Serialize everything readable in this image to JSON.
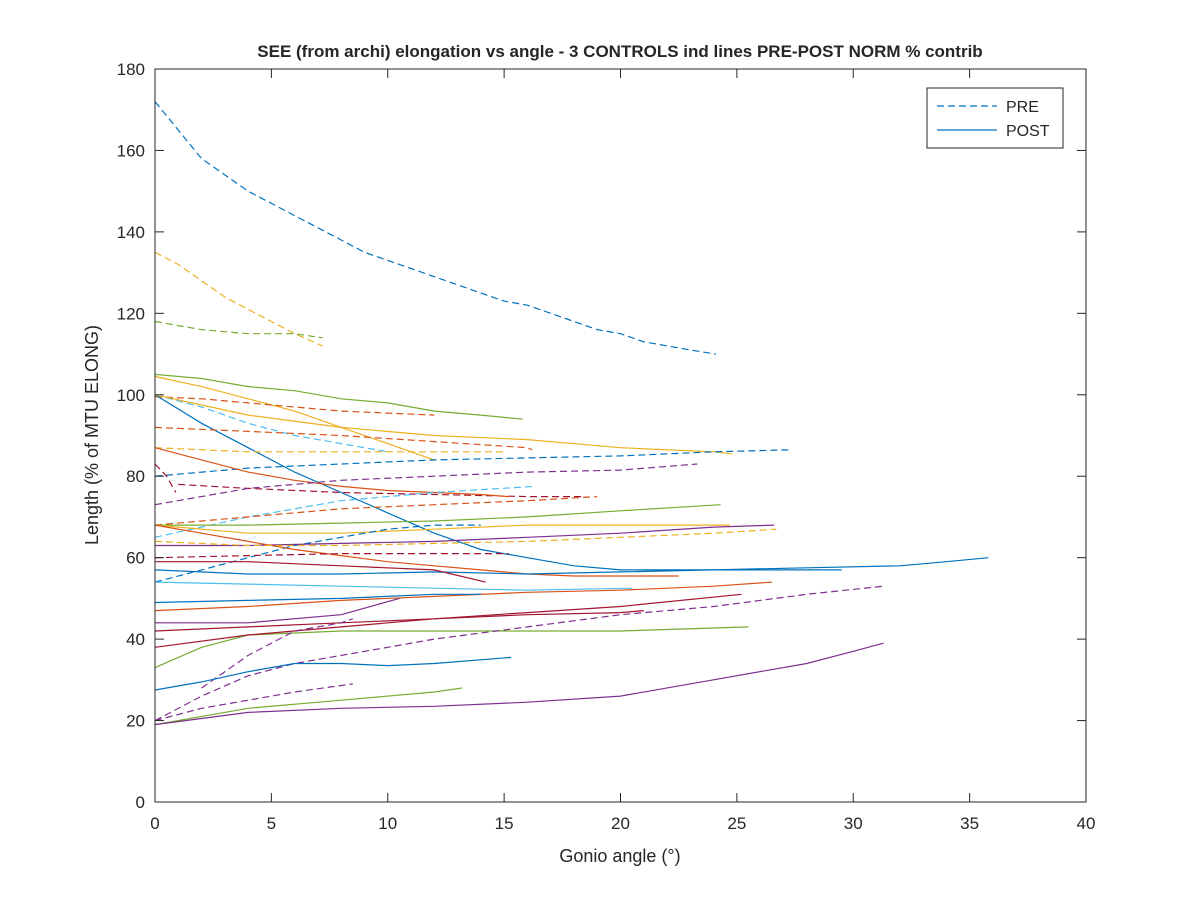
{
  "chart_data": {
    "type": "line",
    "title": "SEE (from archi) elongation vs angle - 3 CONTROLS ind lines PRE-POST NORM % contrib",
    "xlabel": "Gonio angle (°)",
    "ylabel": "Length (% of MTU ELONG)",
    "xlim": [
      0,
      40
    ],
    "ylim": [
      0,
      180
    ],
    "xticks": [
      "0",
      "5",
      "10",
      "15",
      "20",
      "25",
      "30",
      "35",
      "40"
    ],
    "yticks": [
      "0",
      "20",
      "40",
      "60",
      "80",
      "100",
      "120",
      "140",
      "160",
      "180"
    ],
    "grid": false,
    "legend_position": "top-right",
    "legend": [
      {
        "label": "PRE",
        "style": "dashed",
        "color": "#0072BD"
      },
      {
        "label": "POST",
        "style": "solid",
        "color": "#0072BD"
      }
    ],
    "series": [
      {
        "color": "#0072BD",
        "style": "dashed",
        "x": [
          0,
          1,
          2,
          3,
          4,
          5,
          6,
          7,
          8,
          9,
          10,
          11,
          12,
          13,
          14,
          15,
          16,
          17,
          18,
          19,
          20,
          21,
          22,
          23,
          24.1
        ],
        "y": [
          172,
          165,
          158,
          154,
          150,
          147,
          144,
          141,
          138,
          135,
          133,
          131,
          129,
          127,
          125,
          123,
          122,
          120,
          118,
          116,
          115,
          113,
          112,
          111,
          110
        ]
      },
      {
        "color": "#EDB120",
        "style": "dashed",
        "x": [
          0,
          1,
          2,
          3,
          4,
          5,
          6,
          7.2
        ],
        "y": [
          135,
          132,
          128,
          124,
          121,
          118,
          115,
          112
        ]
      },
      {
        "color": "#77AC30",
        "style": "dashed",
        "x": [
          0,
          1,
          2,
          3,
          4,
          5,
          6,
          7.2
        ],
        "y": [
          118,
          117,
          116,
          115.5,
          115,
          115,
          115,
          114
        ]
      },
      {
        "color": "#77AC30",
        "style": "solid",
        "x": [
          0,
          2,
          4,
          6,
          8,
          10,
          12,
          14,
          15.8
        ],
        "y": [
          105,
          104,
          102,
          101,
          99,
          98,
          96,
          95,
          94
        ]
      },
      {
        "color": "#EDB120",
        "style": "solid",
        "x": [
          0,
          2,
          4,
          6,
          8,
          10,
          11,
          12
        ],
        "y": [
          104.5,
          102,
          99,
          96,
          92,
          88,
          86,
          84
        ]
      },
      {
        "color": "#D95319",
        "style": "dashed",
        "x": [
          0,
          2,
          4,
          6,
          8,
          10,
          12
        ],
        "y": [
          99.5,
          99,
          98,
          97,
          96,
          95.5,
          95
        ]
      },
      {
        "color": "#0072BD",
        "style": "solid",
        "x": [
          0,
          2,
          4,
          6,
          8,
          10,
          12,
          14,
          16,
          18,
          20,
          22,
          24,
          26,
          28,
          29.5
        ],
        "y": [
          100,
          93,
          87,
          81,
          76,
          71,
          66,
          62,
          60,
          58,
          57,
          57,
          57,
          57,
          57,
          57
        ]
      },
      {
        "color": "#4DBEEE",
        "style": "dashed",
        "x": [
          0,
          2,
          4,
          6,
          8,
          10
        ],
        "y": [
          100,
          97,
          93,
          90,
          88,
          86
        ]
      },
      {
        "color": "#EDB120",
        "style": "solid",
        "x": [
          0,
          4,
          8,
          12,
          16,
          20,
          24,
          24.8
        ],
        "y": [
          100,
          95,
          92,
          90,
          89,
          87,
          86,
          85.5
        ]
      },
      {
        "color": "#D95319",
        "style": "dashed",
        "x": [
          0,
          4,
          8,
          12,
          16,
          16.2
        ],
        "y": [
          92,
          91,
          90,
          88.5,
          87,
          86.5
        ]
      },
      {
        "color": "#EDB120",
        "style": "dashed",
        "x": [
          0,
          4,
          8,
          12,
          15
        ],
        "y": [
          87,
          86,
          86,
          86,
          86
        ]
      },
      {
        "color": "#0072BD",
        "style": "dashed",
        "x": [
          0,
          4,
          8,
          12,
          16,
          20,
          24,
          27.3
        ],
        "y": [
          80,
          82,
          83,
          84,
          84.5,
          85,
          86,
          86.5
        ]
      },
      {
        "color": "#A2142F",
        "style": "dashed",
        "x": [
          0,
          0.5,
          0.9
        ],
        "y": [
          83,
          80,
          76
        ]
      },
      {
        "color": "#A2142F",
        "style": "dashed",
        "x": [
          1,
          4,
          8,
          12,
          16,
          18.5
        ],
        "y": [
          78,
          77,
          76,
          75.5,
          75,
          75
        ]
      },
      {
        "color": "#D95319",
        "style": "solid",
        "x": [
          0,
          2,
          4,
          6,
          8,
          10,
          12,
          14,
          15.2
        ],
        "y": [
          87,
          84,
          81,
          79,
          77.5,
          76.5,
          76,
          75.5,
          75
        ]
      },
      {
        "color": "#7E2F8E",
        "style": "dashed",
        "x": [
          0,
          4,
          8,
          12,
          16,
          20,
          23.3
        ],
        "y": [
          73,
          77,
          79,
          80,
          81,
          81.5,
          83
        ]
      },
      {
        "color": "#4DBEEE",
        "style": "dashed",
        "x": [
          0,
          4,
          8,
          12,
          16.3
        ],
        "y": [
          65,
          70,
          74,
          76,
          77.5
        ]
      },
      {
        "color": "#D95319",
        "style": "dashed",
        "x": [
          0,
          4,
          8,
          12,
          16,
          19
        ],
        "y": [
          68,
          70,
          72,
          73,
          74,
          75
        ]
      },
      {
        "color": "#77AC30",
        "style": "solid",
        "x": [
          0,
          4,
          8,
          12,
          16,
          20,
          24.3
        ],
        "y": [
          68,
          68,
          68.5,
          69,
          70,
          71.5,
          73
        ]
      },
      {
        "color": "#EDB120",
        "style": "solid",
        "x": [
          0,
          4,
          8,
          12,
          16,
          20,
          24.7
        ],
        "y": [
          68,
          66,
          66,
          67,
          68,
          68,
          68
        ]
      },
      {
        "color": "#0072BD",
        "style": "dashed",
        "x": [
          0,
          2,
          4,
          6,
          8,
          10,
          12,
          14
        ],
        "y": [
          54,
          57,
          60,
          63,
          65,
          67,
          68,
          68
        ]
      },
      {
        "color": "#7E2F8E",
        "style": "solid",
        "x": [
          0,
          4,
          8,
          12,
          16,
          20,
          24,
          26.6
        ],
        "y": [
          63,
          63,
          63.5,
          64,
          65,
          66,
          67.5,
          68
        ]
      },
      {
        "color": "#D95319",
        "style": "solid",
        "x": [
          0,
          2,
          4,
          6,
          8,
          10,
          12,
          14,
          16,
          18,
          20,
          22.5
        ],
        "y": [
          68,
          66,
          64,
          62,
          60.5,
          59,
          58,
          57,
          56,
          55.5,
          55.5,
          55.5
        ]
      },
      {
        "color": "#EDB120",
        "style": "dashed",
        "x": [
          0,
          4,
          8,
          12,
          16,
          20,
          24,
          26.7
        ],
        "y": [
          64,
          63,
          63,
          63.5,
          64,
          65,
          66,
          67
        ]
      },
      {
        "color": "#A2142F",
        "style": "dashed",
        "x": [
          0,
          4,
          8,
          12,
          15.2
        ],
        "y": [
          60,
          60.5,
          61,
          61,
          61
        ]
      },
      {
        "color": "#0072BD",
        "style": "solid",
        "x": [
          0,
          4,
          8,
          12,
          16,
          20,
          24,
          28,
          32,
          34,
          35.8
        ],
        "y": [
          57,
          56,
          56,
          56.5,
          56,
          56.5,
          57,
          57.5,
          58,
          59,
          60
        ]
      },
      {
        "color": "#A2142F",
        "style": "solid",
        "x": [
          0,
          4,
          8,
          12,
          14.2
        ],
        "y": [
          59,
          59,
          58,
          57,
          54
        ]
      },
      {
        "color": "#4DBEEE",
        "style": "solid",
        "x": [
          0,
          4,
          8,
          12,
          16,
          20.5
        ],
        "y": [
          54,
          53.5,
          53,
          52.5,
          52,
          52.5
        ]
      },
      {
        "color": "#D95319",
        "style": "solid",
        "x": [
          0,
          4,
          8,
          12,
          16,
          20,
          24,
          26.5
        ],
        "y": [
          47,
          48,
          49.5,
          50.5,
          51.5,
          52,
          53,
          54
        ]
      },
      {
        "color": "#0072BD",
        "style": "solid",
        "x": [
          0,
          4,
          8,
          12,
          14
        ],
        "y": [
          49,
          49.5,
          50,
          51,
          51
        ]
      },
      {
        "color": "#7E2F8E",
        "style": "solid",
        "x": [
          0,
          4,
          8,
          10.5
        ],
        "y": [
          44,
          44,
          46,
          50
        ]
      },
      {
        "color": "#A2142F",
        "style": "solid",
        "x": [
          0,
          4,
          8,
          12,
          16,
          20,
          25.2
        ],
        "y": [
          42,
          43,
          44,
          45,
          46.5,
          48,
          51
        ]
      },
      {
        "color": "#77AC30",
        "style": "solid",
        "x": [
          0,
          2,
          4,
          8,
          12,
          16,
          20,
          25.5
        ],
        "y": [
          33,
          38,
          41,
          42,
          42,
          42,
          42,
          43
        ]
      },
      {
        "color": "#A2142F",
        "style": "solid",
        "x": [
          0,
          4,
          8,
          12,
          16,
          20,
          21
        ],
        "y": [
          38,
          41,
          43,
          45,
          46,
          46.5,
          47
        ]
      },
      {
        "color": "#7E2F8E",
        "style": "dashed",
        "x": [
          0,
          2,
          4,
          6,
          8,
          10,
          12,
          16,
          20,
          24,
          28,
          31.3
        ],
        "y": [
          20,
          26,
          31,
          34,
          36,
          38,
          40,
          43,
          46,
          48,
          51,
          53
        ]
      },
      {
        "color": "#7E2F8E",
        "style": "dashed",
        "x": [
          2,
          4,
          6,
          8,
          8.5
        ],
        "y": [
          28,
          36,
          42,
          44,
          45
        ]
      },
      {
        "color": "#0072BD",
        "style": "solid",
        "x": [
          0,
          2,
          4,
          6,
          8,
          10,
          12,
          15.3
        ],
        "y": [
          27.5,
          29.5,
          32,
          34,
          34,
          33.5,
          34,
          35.5
        ]
      },
      {
        "color": "#7E2F8E",
        "style": "dashed",
        "x": [
          0,
          2,
          4,
          6,
          8.5
        ],
        "y": [
          20,
          23,
          25,
          27,
          29
        ]
      },
      {
        "color": "#77AC30",
        "style": "solid",
        "x": [
          0,
          4,
          8,
          12,
          13.2
        ],
        "y": [
          19,
          23,
          25,
          27,
          28
        ]
      },
      {
        "color": "#7E2F8E",
        "style": "solid",
        "x": [
          0,
          4,
          8,
          12,
          16,
          20,
          24,
          28,
          30,
          31.3
        ],
        "y": [
          19,
          22,
          23,
          23.5,
          24.5,
          26,
          30,
          34,
          37,
          39
        ]
      }
    ]
  }
}
